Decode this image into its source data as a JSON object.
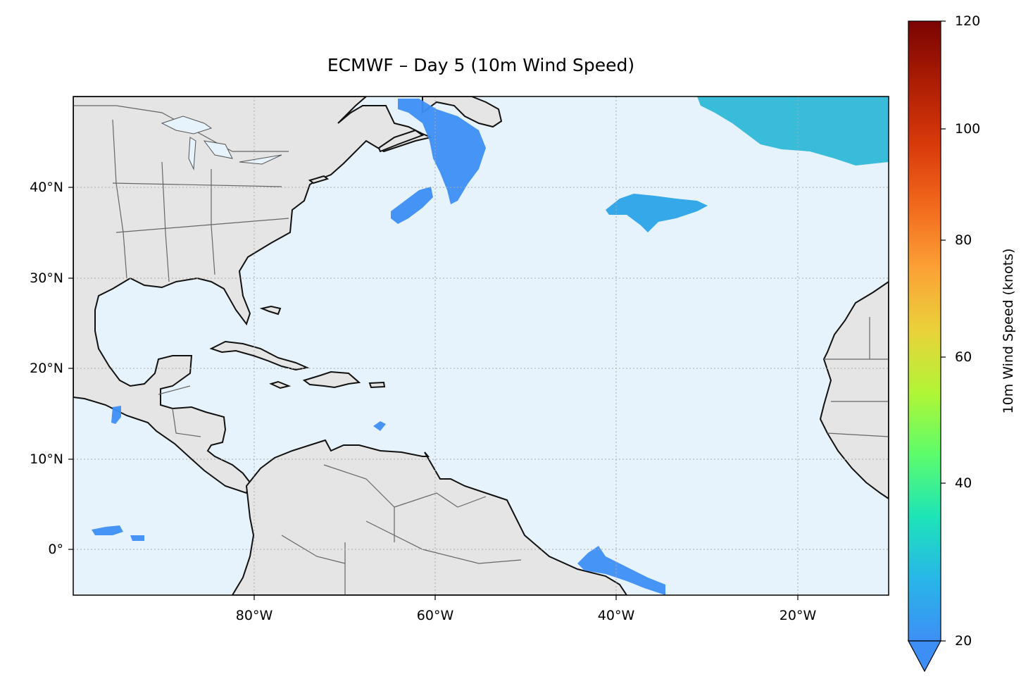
{
  "title": "ECMWF – Day 5 (10m Wind Speed)",
  "map": {
    "projection": "PlateCarree",
    "lon_range": [
      -100,
      -10
    ],
    "lat_range": [
      -5,
      50
    ],
    "ocean_color": "#e6f2fc",
    "land_color": "#e5e5e5",
    "coastline_color": "#111111",
    "border_color": "#555555",
    "gridlines": "dotted",
    "lat_ticks": [
      {
        "value": 40,
        "label": "40°N"
      },
      {
        "value": 30,
        "label": "30°N"
      },
      {
        "value": 20,
        "label": "20°N"
      },
      {
        "value": 10,
        "label": "10°N"
      },
      {
        "value": 0,
        "label": "0°"
      }
    ],
    "lon_ticks": [
      {
        "value": -80,
        "label": "80°W"
      },
      {
        "value": -60,
        "label": "60°W"
      },
      {
        "value": -40,
        "label": "40°W"
      },
      {
        "value": -20,
        "label": "20°W"
      }
    ],
    "wind_regions": [
      {
        "area": "Grand Banks / off Newfoundland",
        "color": "#3d8ff5"
      },
      {
        "area": "Central Atlantic near 37°N 40°W",
        "color": "#2aa3e8"
      },
      {
        "area": "Northeast Atlantic 45-50°N",
        "color": "#2fb8d8"
      },
      {
        "area": "Off northeast Brazil",
        "color": "#3d8ff5"
      },
      {
        "area": "Eastern Pacific near 0°",
        "color": "#3d8ff5"
      },
      {
        "area": "Gulf of Honduras",
        "color": "#3d8ff5"
      }
    ]
  },
  "colorbar": {
    "label": "10m Wind Speed (knots)",
    "min": 20,
    "max": 120,
    "extend": "min",
    "colormap": "turbo",
    "ticks": [
      "20",
      "40",
      "60",
      "80",
      "100",
      "120"
    ]
  }
}
